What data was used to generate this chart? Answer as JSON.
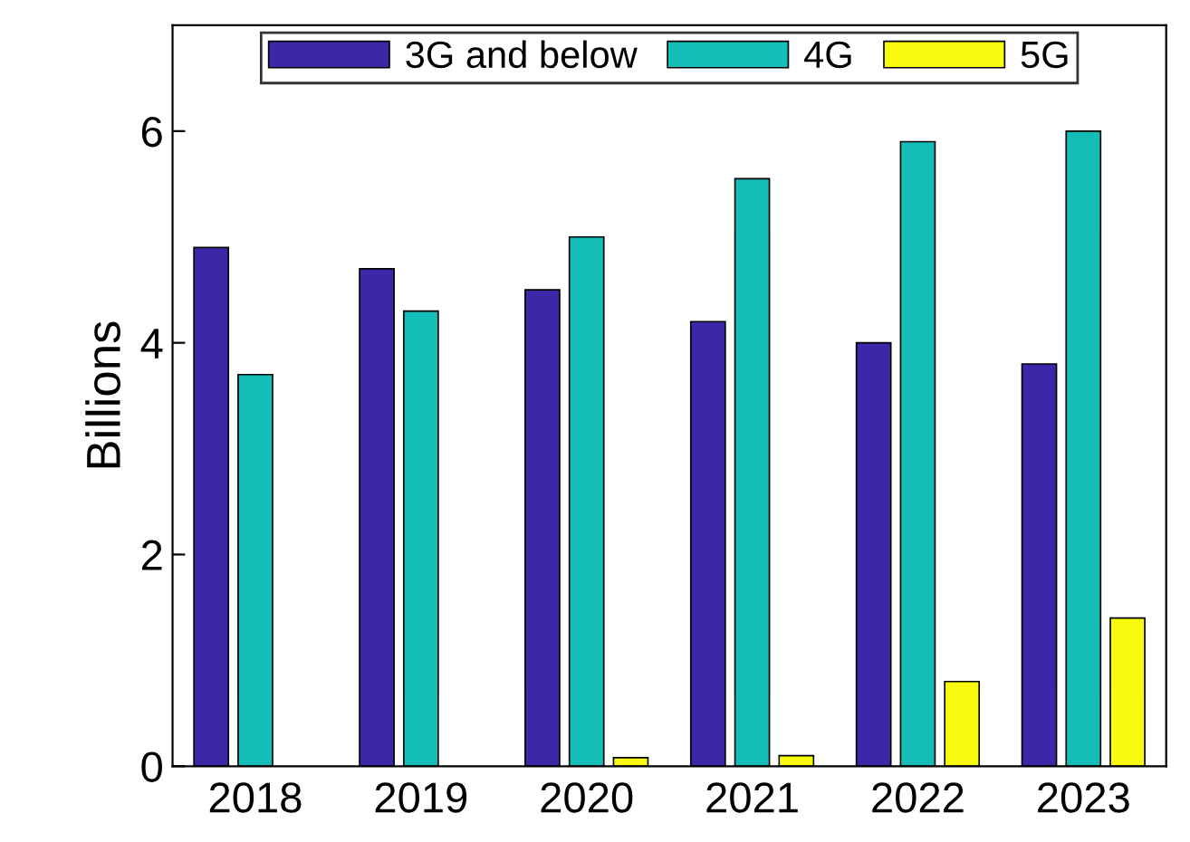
{
  "chart_data": {
    "type": "bar",
    "ylabel": "Billions",
    "categories": [
      "2018",
      "2019",
      "2020",
      "2021",
      "2022",
      "2023"
    ],
    "series": [
      {
        "name": "3G and below",
        "color": "#3e26a8",
        "values": [
          4.9,
          4.7,
          4.5,
          4.2,
          4.0,
          3.8
        ]
      },
      {
        "name": "4G",
        "color": "#14bdb7",
        "values": [
          3.7,
          4.3,
          5.0,
          5.55,
          5.9,
          6.0
        ]
      },
      {
        "name": "5G",
        "color": "#f9fb0e",
        "values": [
          null,
          null,
          0.08,
          0.1,
          0.8,
          1.4
        ]
      }
    ],
    "ylim": [
      0,
      7
    ],
    "yticks": [
      0,
      2,
      4,
      6
    ],
    "grid": false,
    "legend": "top"
  }
}
